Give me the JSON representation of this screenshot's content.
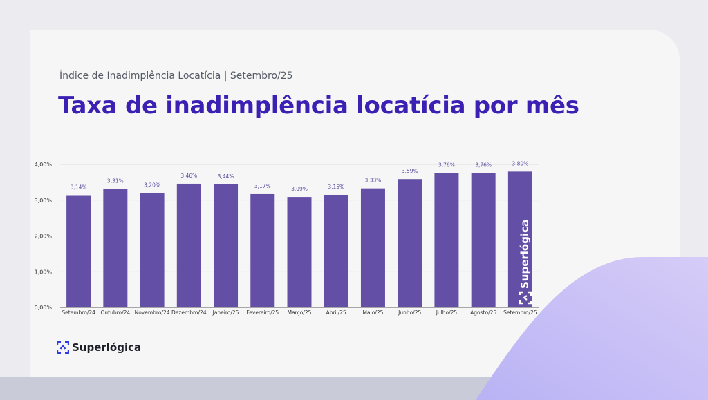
{
  "header": {
    "subtitle": "Índice de Inadimplência Locatícia | Setembro/25",
    "title": "Taxa de inadimplência locatícia por mês"
  },
  "brand": {
    "name": "Superlógica",
    "icon": "superlogica-logo-icon",
    "watermark": "Superlógica"
  },
  "colors": {
    "bar": "#6350a6",
    "title": "#3c20b4",
    "label": "#5a4d9c",
    "accent_shape": "#c6bdf5",
    "logo_blue": "#2f3de0"
  },
  "chart_data": {
    "type": "bar",
    "categories": [
      "Setembro/24",
      "Outubro/24",
      "Novembro/24",
      "Dezembro/24",
      "Janeiro/25",
      "Fevereiro/25",
      "Março/25",
      "Abril/25",
      "Maio/25",
      "Junho/25",
      "Julho/25",
      "Agosto/25",
      "Setembro/25"
    ],
    "values": [
      3.14,
      3.31,
      3.2,
      3.46,
      3.44,
      3.17,
      3.09,
      3.15,
      3.33,
      3.59,
      3.76,
      3.76,
      3.8
    ],
    "data_labels": [
      "3,14%",
      "3,31%",
      "3,20%",
      "3,46%",
      "3,44%",
      "3,17%",
      "3,09%",
      "3,15%",
      "3,33%",
      "3,59%",
      "3,76%",
      "3,76%",
      "3,80%"
    ],
    "yticks": [
      0,
      1,
      2,
      3,
      4
    ],
    "ytick_labels": [
      "0,00%",
      "1,00%",
      "2,00%",
      "3,00%",
      "4,00%"
    ],
    "ylim": [
      0,
      4
    ],
    "grid": true,
    "legend": "none",
    "xlabel": "",
    "ylabel": ""
  }
}
